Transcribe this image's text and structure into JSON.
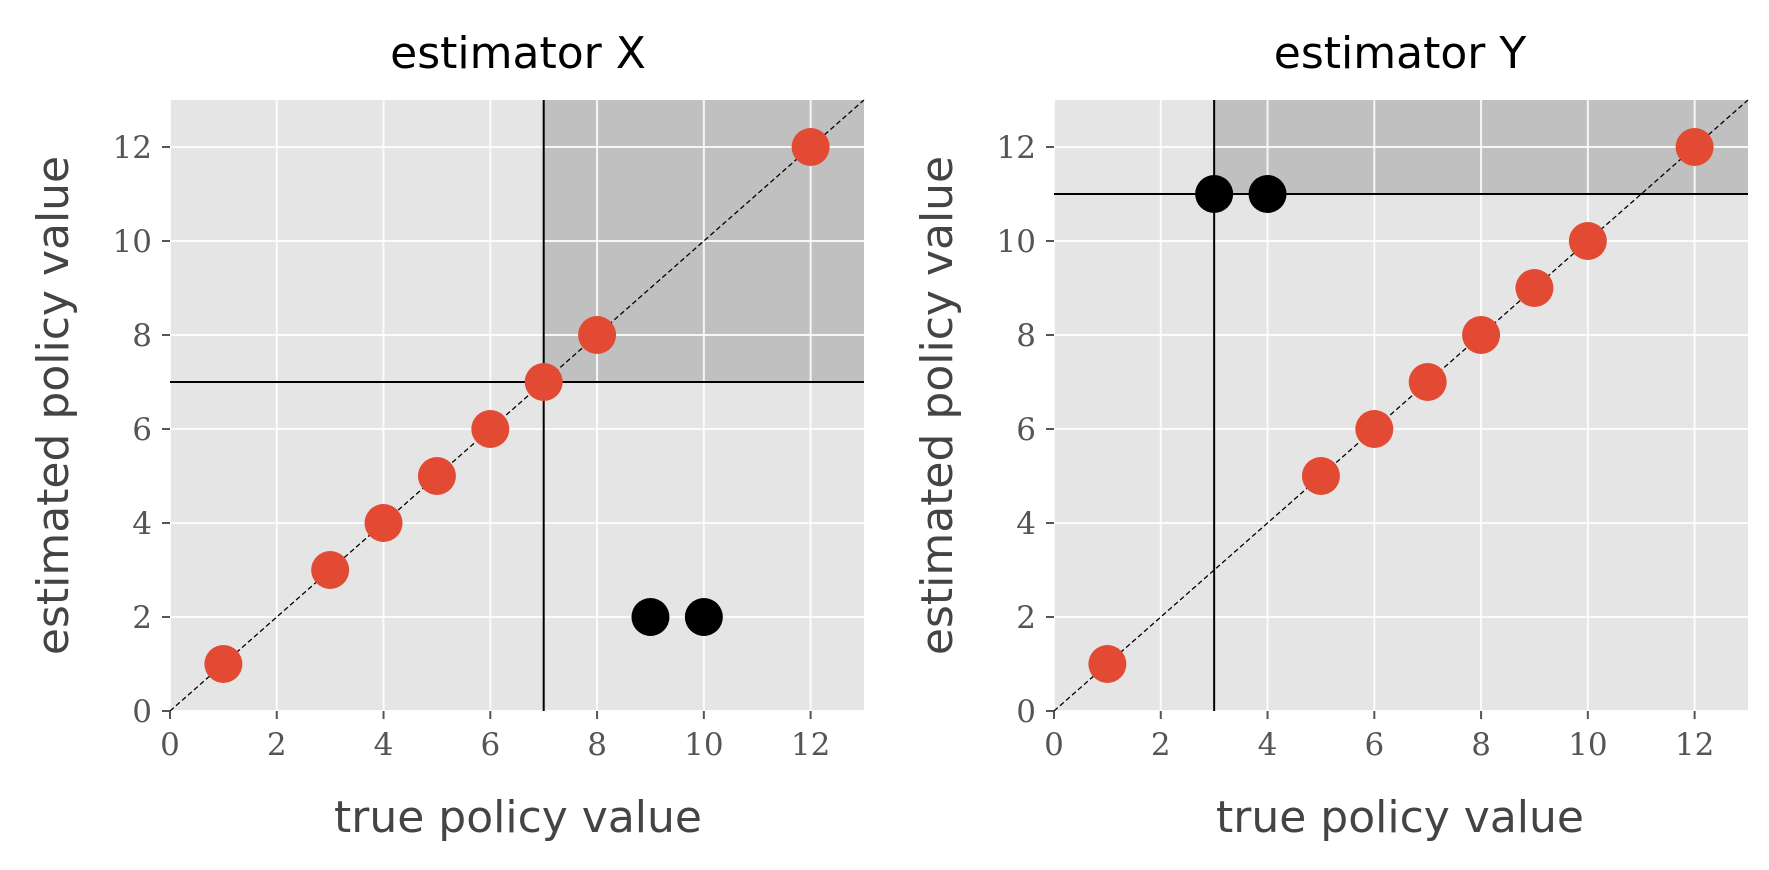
{
  "chart_data": [
    {
      "type": "scatter",
      "title": "estimator X",
      "xlabel": "true policy value",
      "ylabel": "estimated policy value",
      "xlim": [
        0,
        13
      ],
      "ylim": [
        0,
        13
      ],
      "xticks": [
        "0",
        "2",
        "4",
        "6",
        "8",
        "10",
        "12"
      ],
      "yticks": [
        "0",
        "2",
        "4",
        "6",
        "8",
        "10",
        "12"
      ],
      "grid": true,
      "diagonal": "dashed y = x",
      "threshold": {
        "x": 7,
        "y": 7
      },
      "shaded_region": {
        "x_min": 7,
        "y_min": 7
      },
      "series": [
        {
          "color": "#e24a33",
          "points": [
            [
              1,
              1
            ],
            [
              3,
              3
            ],
            [
              4,
              4
            ],
            [
              5,
              5
            ],
            [
              6,
              6
            ],
            [
              7,
              7
            ],
            [
              8,
              8
            ],
            [
              12,
              12
            ]
          ]
        },
        {
          "color": "#000000",
          "points": [
            [
              9,
              2
            ],
            [
              10,
              2
            ]
          ]
        }
      ]
    },
    {
      "type": "scatter",
      "title": "estimator Y",
      "xlabel": "true policy value",
      "ylabel": "estimated policy value",
      "xlim": [
        0,
        13
      ],
      "ylim": [
        0,
        13
      ],
      "xticks": [
        "0",
        "2",
        "4",
        "6",
        "8",
        "10",
        "12"
      ],
      "yticks": [
        "0",
        "2",
        "4",
        "6",
        "8",
        "10",
        "12"
      ],
      "grid": true,
      "diagonal": "dashed y = x",
      "threshold": {
        "x": 3,
        "y": 11
      },
      "shaded_region": {
        "x_min": 3,
        "y_min": 11
      },
      "series": [
        {
          "color": "#e24a33",
          "points": [
            [
              1,
              1
            ],
            [
              5,
              5
            ],
            [
              6,
              6
            ],
            [
              7,
              7
            ],
            [
              8,
              8
            ],
            [
              9,
              9
            ],
            [
              10,
              10
            ],
            [
              12,
              12
            ]
          ]
        },
        {
          "color": "#000000",
          "points": [
            [
              3,
              11
            ],
            [
              4,
              11
            ]
          ]
        }
      ]
    }
  ]
}
